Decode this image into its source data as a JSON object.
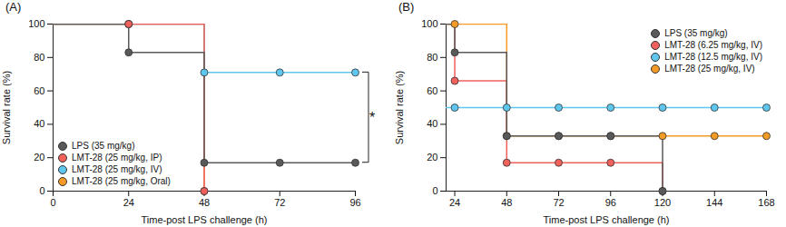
{
  "chart_data": [
    {
      "type": "line",
      "title": "(A)",
      "xlabel": "Time-post LPS challenge (h)",
      "ylabel": "Survival rate (%)",
      "x": [
        0,
        24,
        48,
        72,
        96
      ],
      "xlim": [
        0,
        96
      ],
      "xticks": [
        0,
        24,
        48,
        72,
        96
      ],
      "ylim": [
        0,
        100
      ],
      "yticks": [
        0,
        20,
        40,
        60,
        80,
        100
      ],
      "line_style": "step",
      "marker": "circle",
      "legend": "lower left",
      "series": [
        {
          "name": "LPS (35 mg/kg)",
          "color": "#595959",
          "values": [
            100,
            83,
            17,
            17,
            17
          ]
        },
        {
          "name": "LMT-28 (25 mg/kg, IP)",
          "color": "#f0615c",
          "values": [
            100,
            100,
            0,
            null,
            null
          ]
        },
        {
          "name": "LMT-28 (25 mg/kg, IV)",
          "color": "#5fc6ee",
          "values": [
            100,
            100,
            71,
            71,
            71
          ]
        },
        {
          "name": "LMT-28 (25 mg/kg, Oral)",
          "color": "#f39a27",
          "values": [
            100,
            100,
            0,
            null,
            null
          ]
        }
      ],
      "annotations": [
        {
          "text": "*",
          "between": [
            "LMT-28 (25 mg/kg, IV)",
            "LPS (35 mg/kg)"
          ]
        }
      ]
    },
    {
      "type": "line",
      "title": "(B)",
      "xlabel": "Time-post LPS challenge (h)",
      "ylabel": "Survival rate (%)",
      "x": [
        20,
        24,
        48,
        72,
        96,
        120,
        144,
        168
      ],
      "xlim": [
        20,
        168
      ],
      "xticks": [
        24,
        48,
        72,
        96,
        120,
        144,
        168
      ],
      "ylim": [
        0,
        100
      ],
      "yticks": [
        0,
        20,
        40,
        60,
        80,
        100
      ],
      "line_style": "step",
      "marker": "circle",
      "legend": "upper right",
      "series": [
        {
          "name": "LPS (35 mg/kg)",
          "color": "#595959",
          "values": [
            100,
            83,
            33,
            33,
            33,
            0,
            null,
            null
          ]
        },
        {
          "name": "LMT-28 (6.25 mg/kg, IV)",
          "color": "#f0615c",
          "values": [
            100,
            66,
            17,
            17,
            17,
            0,
            null,
            null
          ]
        },
        {
          "name": "LMT-28 (12.5 mg/kg, IV)",
          "color": "#5fc6ee",
          "values": [
            50,
            50,
            50,
            50,
            50,
            50,
            50,
            50
          ]
        },
        {
          "name": "LMT-28 (25 mg/kg, IV)",
          "color": "#f39a27",
          "values": [
            100,
            100,
            33,
            33,
            33,
            33,
            33,
            33
          ]
        }
      ]
    }
  ]
}
